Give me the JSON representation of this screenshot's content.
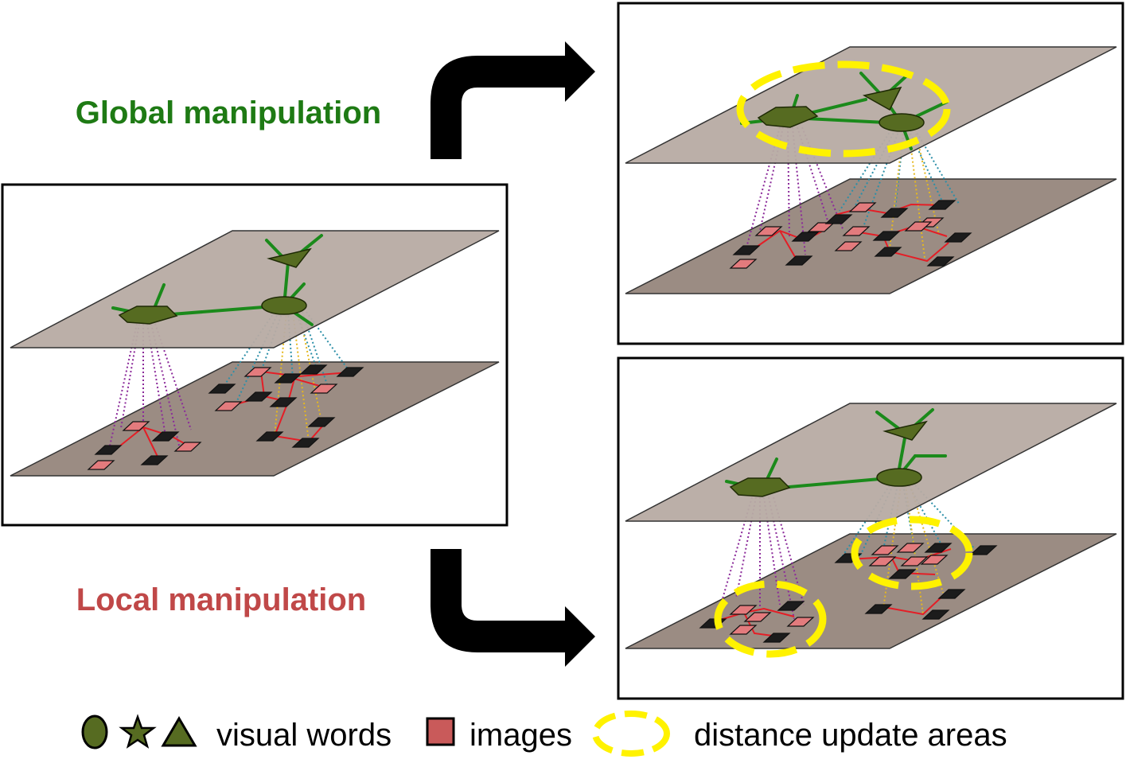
{
  "labels": {
    "global": "Global manipulation",
    "local": "Local manipulation"
  },
  "legend": {
    "visual_words": "visual words",
    "images": "images",
    "distance_areas": "distance update areas"
  },
  "colors": {
    "global_text": "#1e7a14",
    "local_text": "#c04848",
    "upper_plane": "#b7aba3",
    "lower_plane": "#9b8c83",
    "word_fill": "#566b21",
    "edge_green": "#1b8a1b",
    "image_pink": "#e37b7d",
    "image_dark": "#1c1c1c",
    "link_red": "#e41e26",
    "dot_purple": "#8b2a9a",
    "dot_teal": "#2c8fa8",
    "dot_yellow": "#e5b81f",
    "highlight": "#fff200",
    "legend_square": "#c95a5a",
    "arrow": "#000000"
  },
  "icons": [
    "circle-icon",
    "star-icon",
    "triangle-icon",
    "square-icon",
    "dashed-ellipse-icon"
  ]
}
